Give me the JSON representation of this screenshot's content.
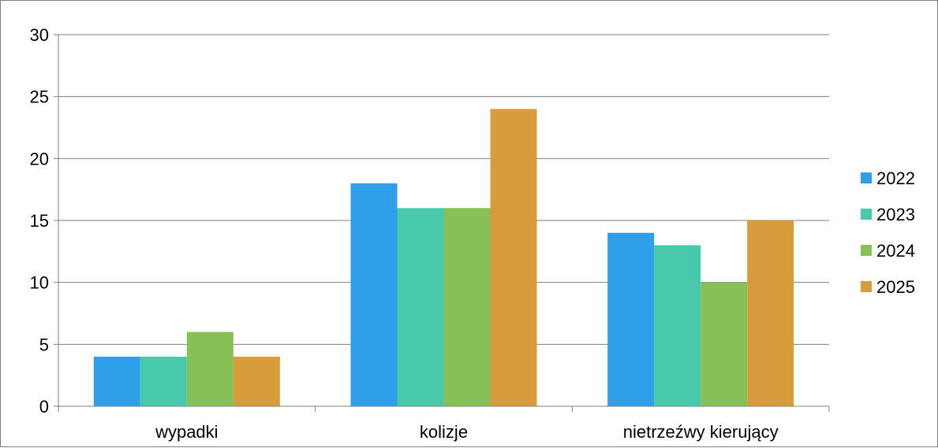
{
  "chart_data": {
    "type": "bar",
    "categories": [
      "wypadki",
      "kolizje",
      "nietrzeźwy kierujący"
    ],
    "series": [
      {
        "name": "2022",
        "color": "#2e9fe8",
        "values": [
          4,
          18,
          14
        ]
      },
      {
        "name": "2023",
        "color": "#48c9ab",
        "values": [
          4,
          16,
          13
        ]
      },
      {
        "name": "2024",
        "color": "#86c056",
        "values": [
          6,
          16,
          10
        ]
      },
      {
        "name": "2025",
        "color": "#d89c3d",
        "values": [
          4,
          24,
          15
        ]
      }
    ],
    "ylim": [
      0,
      30
    ],
    "yticks": [
      "0",
      "5",
      "10",
      "15",
      "20",
      "25",
      "30"
    ],
    "grid": true,
    "legend_position": "right"
  }
}
